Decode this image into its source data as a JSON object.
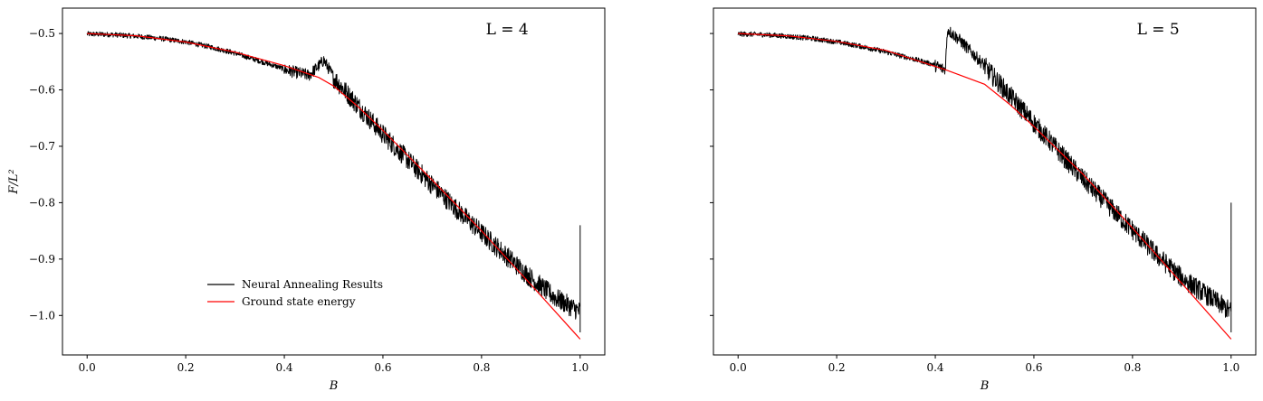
{
  "chart_data": [
    {
      "type": "line",
      "title": "L = 4",
      "xlabel": "B",
      "ylabel": "F/L²",
      "xlim": [
        -0.05,
        1.05
      ],
      "ylim": [
        -1.07,
        -0.455
      ],
      "xticks": [
        0.0,
        0.2,
        0.4,
        0.6,
        0.8,
        1.0
      ],
      "xtick_labels": [
        "0.0",
        "0.2",
        "0.4",
        "0.6",
        "0.8",
        "1.0"
      ],
      "yticks": [
        -0.5,
        -0.6,
        -0.7,
        -0.8,
        -0.9,
        -1.0
      ],
      "ytick_labels": [
        "−0.5",
        "−0.6",
        "−0.7",
        "−0.8",
        "−0.9",
        "−1.0"
      ],
      "grid": false,
      "legend": "lower-left",
      "series": [
        {
          "name": "Neural Annealing Results",
          "color": "#000000",
          "x": [
            0.0,
            0.05,
            0.1,
            0.15,
            0.2,
            0.25,
            0.3,
            0.35,
            0.4,
            0.45,
            0.47,
            0.48,
            0.5,
            0.55,
            0.6,
            0.65,
            0.7,
            0.75,
            0.8,
            0.85,
            0.9,
            0.95,
            1.0
          ],
          "y": [
            -0.5,
            -0.501,
            -0.504,
            -0.508,
            -0.514,
            -0.523,
            -0.534,
            -0.548,
            -0.562,
            -0.572,
            -0.555,
            -0.545,
            -0.575,
            -0.625,
            -0.675,
            -0.72,
            -0.765,
            -0.808,
            -0.85,
            -0.89,
            -0.93,
            -0.965,
            -0.99
          ],
          "noise": 0.018
        },
        {
          "name": "Ground state energy",
          "color": "#ff0000",
          "x": [
            0.0,
            0.1,
            0.2,
            0.3,
            0.4,
            0.47,
            0.5,
            0.55,
            0.6,
            0.7,
            0.8,
            0.9,
            1.0
          ],
          "y": [
            -0.5,
            -0.504,
            -0.515,
            -0.533,
            -0.557,
            -0.578,
            -0.593,
            -0.63,
            -0.672,
            -0.76,
            -0.85,
            -0.945,
            -1.042
          ]
        }
      ]
    },
    {
      "type": "line",
      "title": "L = 5",
      "xlabel": "B",
      "ylabel": "",
      "xlim": [
        -0.05,
        1.05
      ],
      "ylim": [
        -1.07,
        -0.455
      ],
      "xticks": [
        0.0,
        0.2,
        0.4,
        0.6,
        0.8,
        1.0
      ],
      "xtick_labels": [
        "0.0",
        "0.2",
        "0.4",
        "0.6",
        "0.8",
        "1.0"
      ],
      "yticks": [
        -0.5,
        -0.6,
        -0.7,
        -0.8,
        -0.9,
        -1.0
      ],
      "ytick_labels": [],
      "grid": false,
      "legend": "none",
      "series": [
        {
          "name": "Neural Annealing Results",
          "color": "#000000",
          "x": [
            0.0,
            0.05,
            0.1,
            0.15,
            0.2,
            0.25,
            0.3,
            0.35,
            0.4,
            0.42,
            0.425,
            0.43,
            0.45,
            0.5,
            0.55,
            0.6,
            0.65,
            0.7,
            0.75,
            0.8,
            0.85,
            0.9,
            0.95,
            1.0
          ],
          "y": [
            -0.5,
            -0.501,
            -0.504,
            -0.508,
            -0.514,
            -0.522,
            -0.532,
            -0.543,
            -0.555,
            -0.562,
            -0.49,
            -0.495,
            -0.51,
            -0.555,
            -0.605,
            -0.655,
            -0.705,
            -0.755,
            -0.8,
            -0.845,
            -0.89,
            -0.93,
            -0.96,
            -0.99
          ],
          "noise": 0.018
        },
        {
          "name": "Ground state energy",
          "color": "#ff0000",
          "x": [
            0.0,
            0.1,
            0.2,
            0.3,
            0.42,
            0.5,
            0.55,
            0.6,
            0.7,
            0.8,
            0.9,
            1.0
          ],
          "y": [
            -0.5,
            -0.504,
            -0.514,
            -0.53,
            -0.564,
            -0.59,
            -0.625,
            -0.665,
            -0.75,
            -0.845,
            -0.943,
            -1.042
          ]
        }
      ]
    }
  ]
}
